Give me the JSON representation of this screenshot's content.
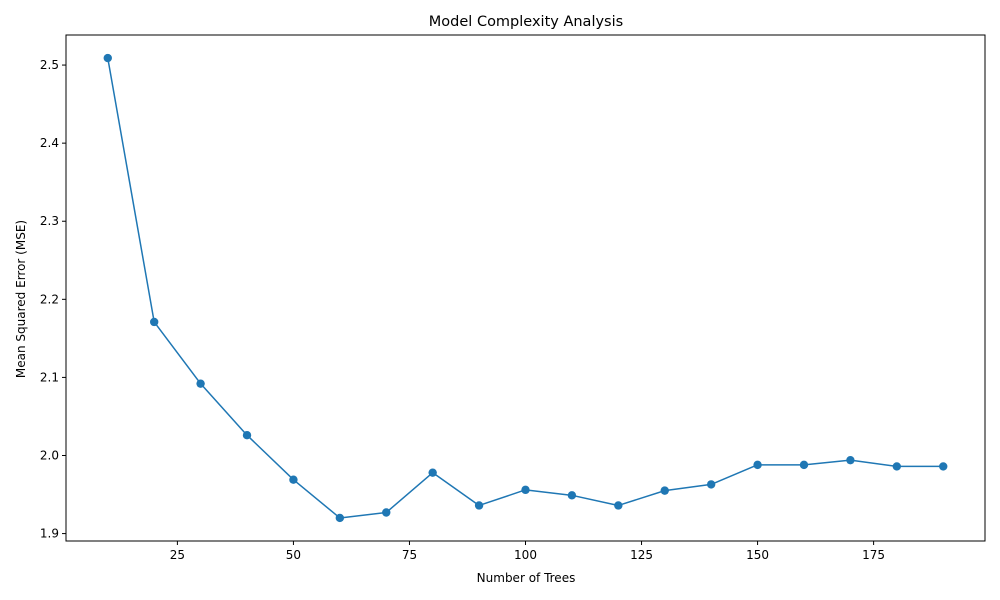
{
  "chart_data": {
    "type": "line",
    "title": "Model Complexity Analysis",
    "xlabel": "Number of Trees",
    "ylabel": "Mean Squared Error (MSE)",
    "xlim": [
      1,
      199
    ],
    "ylim": [
      1.8905,
      2.5385
    ],
    "xticks": [
      25,
      50,
      75,
      100,
      125,
      150,
      175
    ],
    "yticks": [
      1.9,
      2.0,
      2.1,
      2.2,
      2.3,
      2.4,
      2.5
    ],
    "xtick_labels": [
      "25",
      "50",
      "75",
      "100",
      "125",
      "150",
      "175"
    ],
    "ytick_labels": [
      "1.9",
      "2.0",
      "2.1",
      "2.2",
      "2.3",
      "2.4",
      "2.5"
    ],
    "grid": false,
    "line_color": "#1f77b4",
    "marker": "circle",
    "x": [
      10,
      20,
      30,
      40,
      50,
      60,
      70,
      80,
      90,
      100,
      110,
      120,
      130,
      140,
      150,
      160,
      170,
      180,
      190
    ],
    "y": [
      2.509,
      2.171,
      2.092,
      2.026,
      1.969,
      1.92,
      1.927,
      1.978,
      1.936,
      1.956,
      1.949,
      1.936,
      1.955,
      1.963,
      1.988,
      1.988,
      1.994,
      1.986,
      1.986
    ]
  }
}
